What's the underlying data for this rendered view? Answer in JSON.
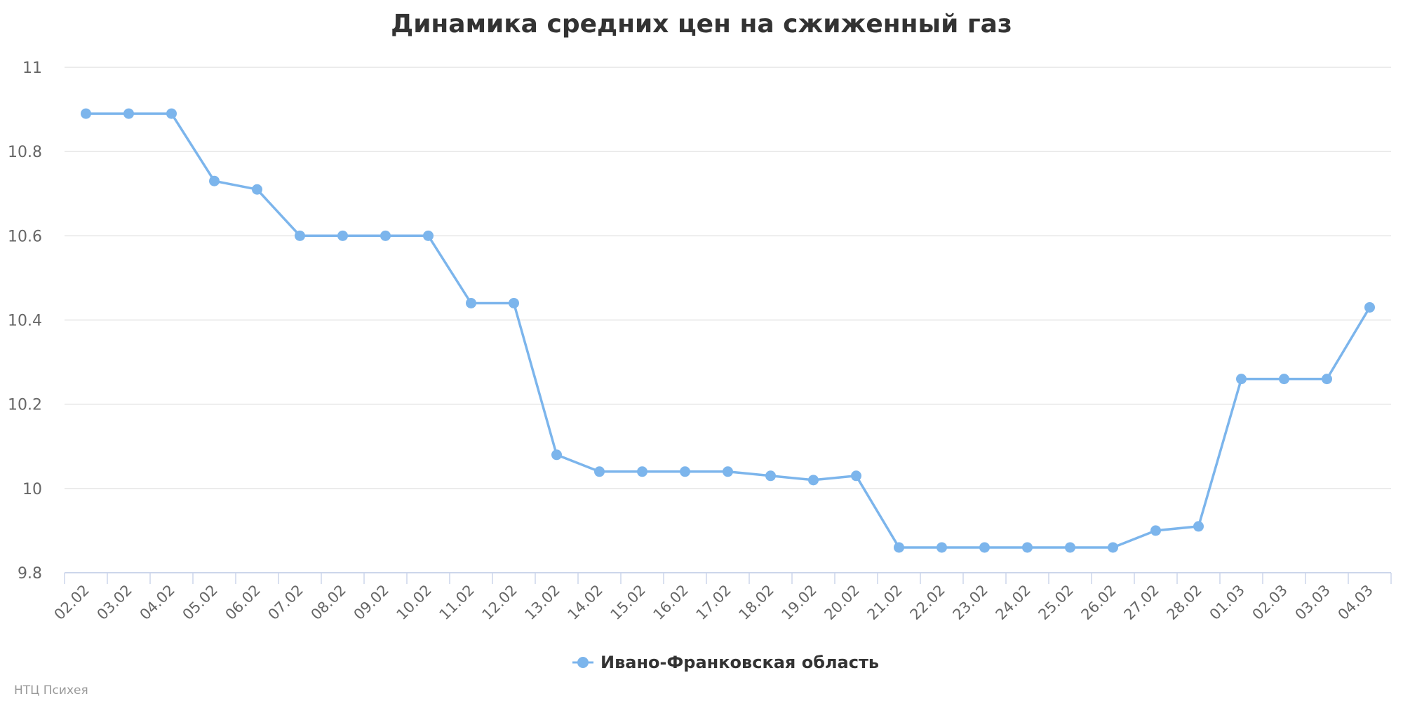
{
  "chart_data": {
    "type": "line",
    "title": "Динамика средних цен на сжиженный газ",
    "xlabel": "",
    "ylabel": "",
    "ylim": [
      9.8,
      11
    ],
    "yticks": [
      "9.8",
      "10",
      "10.2",
      "10.4",
      "10.6",
      "10.8",
      "11"
    ],
    "grid": true,
    "legend_position": "bottom-center",
    "categories": [
      "02.02",
      "03.02",
      "04.02",
      "05.02",
      "06.02",
      "07.02",
      "08.02",
      "09.02",
      "10.02",
      "11.02",
      "12.02",
      "13.02",
      "14.02",
      "15.02",
      "16.02",
      "17.02",
      "18.02",
      "19.02",
      "20.02",
      "21.02",
      "22.02",
      "23.02",
      "24.02",
      "25.02",
      "26.02",
      "27.02",
      "28.02",
      "01.03",
      "02.03",
      "03.03",
      "04.03"
    ],
    "series": [
      {
        "name": "Ивано-Франковская область",
        "color": "#7cb5ec",
        "values": [
          10.89,
          10.89,
          10.89,
          10.73,
          10.71,
          10.6,
          10.6,
          10.6,
          10.6,
          10.44,
          10.44,
          10.08,
          10.04,
          10.04,
          10.04,
          10.04,
          10.03,
          10.02,
          10.03,
          9.86,
          9.86,
          9.86,
          9.86,
          9.86,
          9.86,
          9.9,
          9.91,
          10.26,
          10.26,
          10.26,
          10.43
        ]
      }
    ],
    "credits": "НТЦ Психея"
  }
}
